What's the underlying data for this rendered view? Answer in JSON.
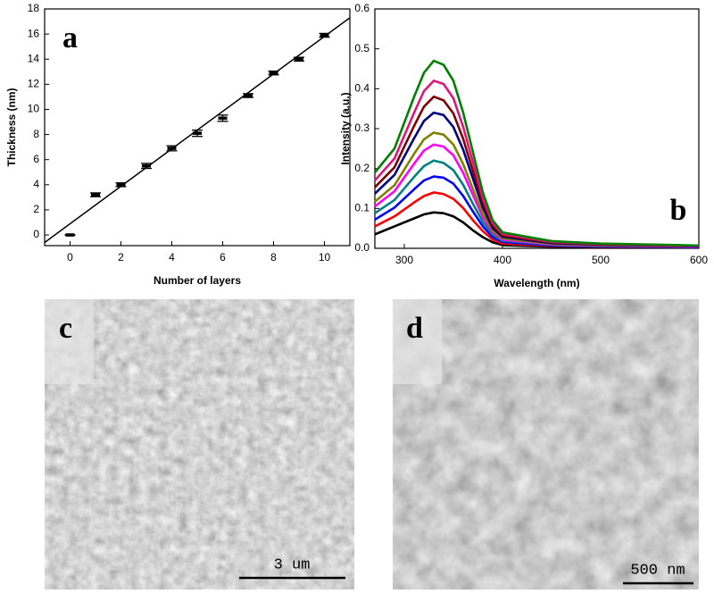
{
  "chart_data": [
    {
      "type": "scatter",
      "label": "a",
      "x_label": "Number of layers",
      "y_label": "Thickness (nm)",
      "x": [
        0,
        1,
        2,
        3,
        4,
        5,
        6,
        7,
        8,
        9,
        10
      ],
      "values": [
        0,
        3.2,
        4.0,
        5.5,
        6.9,
        8.1,
        9.3,
        11.1,
        12.9,
        14.0,
        15.9
      ],
      "errors": [
        0,
        0.15,
        0.15,
        0.2,
        0.2,
        0.25,
        0.25,
        0.15,
        0.15,
        0.15,
        0.15
      ],
      "color": "#000000",
      "fit": {
        "x": [
          -1,
          11
        ],
        "values": [
          -0.6,
          17.3
        ]
      },
      "xlim": [
        -1,
        11
      ],
      "ylim": [
        -0.85,
        18
      ],
      "xticks": [
        0,
        2,
        4,
        6,
        8,
        10
      ],
      "yticks": [
        0,
        2,
        4,
        6,
        8,
        10,
        12,
        14,
        16,
        18
      ]
    },
    {
      "type": "line",
      "label": "b",
      "x_label": "Wavelength (nm)",
      "y_label": "Intensity (a.u.)",
      "x": [
        270,
        290,
        310,
        320,
        330,
        340,
        350,
        360,
        370,
        380,
        390,
        400,
        450,
        500,
        600
      ],
      "series": [
        {
          "color": "#000000",
          "values": [
            0.035,
            0.055,
            0.075,
            0.085,
            0.09,
            0.088,
            0.08,
            0.065,
            0.045,
            0.028,
            0.015,
            0.008,
            0.004,
            0.003,
            0.002
          ]
        },
        {
          "color": "#ff0000",
          "values": [
            0.055,
            0.08,
            0.115,
            0.131,
            0.14,
            0.136,
            0.124,
            0.101,
            0.07,
            0.043,
            0.022,
            0.012,
            0.006,
            0.004,
            0.003
          ]
        },
        {
          "color": "#0000ff",
          "values": [
            0.072,
            0.102,
            0.148,
            0.17,
            0.18,
            0.177,
            0.162,
            0.131,
            0.092,
            0.055,
            0.028,
            0.016,
            0.007,
            0.005,
            0.003
          ]
        },
        {
          "color": "#008080",
          "values": [
            0.088,
            0.121,
            0.179,
            0.206,
            0.22,
            0.214,
            0.196,
            0.159,
            0.111,
            0.066,
            0.034,
            0.019,
            0.009,
            0.006,
            0.004
          ]
        },
        {
          "color": "#ff00ff",
          "values": [
            0.105,
            0.143,
            0.212,
            0.245,
            0.26,
            0.255,
            0.233,
            0.189,
            0.133,
            0.078,
            0.04,
            0.022,
            0.01,
            0.007,
            0.004
          ]
        },
        {
          "color": "#808000",
          "values": [
            0.117,
            0.158,
            0.237,
            0.273,
            0.29,
            0.285,
            0.26,
            0.211,
            0.148,
            0.087,
            0.044,
            0.025,
            0.011,
            0.008,
            0.005
          ]
        },
        {
          "color": "#000080",
          "values": [
            0.137,
            0.184,
            0.276,
            0.319,
            0.34,
            0.334,
            0.304,
            0.247,
            0.174,
            0.102,
            0.051,
            0.029,
            0.013,
            0.009,
            0.005
          ]
        },
        {
          "color": "#800000",
          "values": [
            0.153,
            0.203,
            0.307,
            0.355,
            0.38,
            0.371,
            0.338,
            0.274,
            0.193,
            0.113,
            0.057,
            0.032,
            0.015,
            0.01,
            0.006
          ]
        },
        {
          "color": "#e0147a",
          "values": [
            0.17,
            0.225,
            0.34,
            0.394,
            0.42,
            0.412,
            0.376,
            0.304,
            0.215,
            0.125,
            0.063,
            0.036,
            0.016,
            0.011,
            0.006
          ]
        },
        {
          "color": "#008000",
          "values": [
            0.19,
            0.25,
            0.38,
            0.44,
            0.47,
            0.46,
            0.42,
            0.34,
            0.24,
            0.14,
            0.07,
            0.04,
            0.018,
            0.012,
            0.007
          ]
        }
      ],
      "xlim": [
        270,
        600
      ],
      "ylim": [
        0,
        0.6
      ],
      "xticks": [
        300,
        400,
        500,
        600
      ],
      "yticks": [
        {
          "value": 0,
          "label": "0.0"
        },
        0.1,
        0.2,
        0.3,
        0.4,
        0.5,
        0.6
      ]
    }
  ],
  "images": [
    {
      "label": "c",
      "scale_bar": "3 um"
    },
    {
      "label": "d",
      "scale_bar": "500 nm"
    }
  ]
}
